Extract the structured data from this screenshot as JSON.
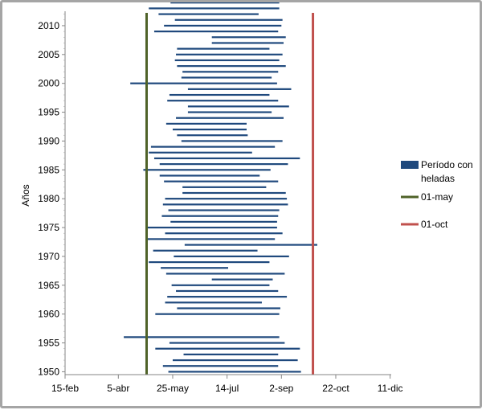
{
  "chart_data": {
    "type": "range-bar",
    "ylabel": "Años",
    "x_ticks": [
      {
        "label": "15-feb",
        "day": 46
      },
      {
        "label": "5-abr",
        "day": 95
      },
      {
        "label": "25-may",
        "day": 145
      },
      {
        "label": "14-jul",
        "day": 195
      },
      {
        "label": "2-sep",
        "day": 245
      },
      {
        "label": "22-oct",
        "day": 295
      },
      {
        "label": "11-dic",
        "day": 345
      }
    ],
    "xlim_day_of_year": [
      46,
      346
    ],
    "ylim_year": [
      2012.5,
      1949.5
    ],
    "y_ticks": [
      1950,
      1955,
      1960,
      1965,
      1970,
      1975,
      1980,
      1985,
      1990,
      1995,
      2000,
      2005,
      2010
    ],
    "ref_lines": [
      {
        "label": "01-may",
        "day": 121,
        "color": "#4f6228"
      },
      {
        "label": "01-oct",
        "day": 274,
        "color": "#c0504d"
      }
    ],
    "legend": {
      "placement": "right",
      "series_label": "Período con heladas"
    },
    "series_color": "#1f497d",
    "series": [
      {
        "name": "Período con heladas",
        "points": [
          {
            "year": 1950,
            "start": "May-21",
            "end": "Sep-20"
          },
          {
            "year": 1951,
            "start": "May-16",
            "end": "Aug-30"
          },
          {
            "year": 1952,
            "start": "May-25",
            "end": "Sep-17"
          },
          {
            "year": 1953,
            "start": "Jun-04",
            "end": "Aug-30"
          },
          {
            "year": 1954,
            "start": "May-09",
            "end": "Sep-19"
          },
          {
            "year": 1955,
            "start": "May-22",
            "end": "Sep-05"
          },
          {
            "year": 1956,
            "start": "Apr-10",
            "end": "Aug-31"
          },
          {
            "year": 1960,
            "start": "May-09",
            "end": "Aug-31"
          },
          {
            "year": 1961,
            "start": "May-29",
            "end": "Sep-01"
          },
          {
            "year": 1962,
            "start": "May-18",
            "end": "Aug-15"
          },
          {
            "year": 1963,
            "start": "May-20",
            "end": "Sep-07"
          },
          {
            "year": 1964,
            "start": "May-28",
            "end": "Aug-30"
          },
          {
            "year": 1965,
            "start": "May-24",
            "end": "Aug-22"
          },
          {
            "year": 1966,
            "start": "Jun-30",
            "end": "Aug-25"
          },
          {
            "year": 1967,
            "start": "May-19",
            "end": "Sep-05"
          },
          {
            "year": 1968,
            "start": "May-14",
            "end": "Jul-15"
          },
          {
            "year": 1969,
            "start": "May-03",
            "end": "Aug-22"
          },
          {
            "year": 1970,
            "start": "May-26",
            "end": "Sep-09"
          },
          {
            "year": 1971,
            "start": "May-07",
            "end": "Aug-11"
          },
          {
            "year": 1972,
            "start": "Jun-05",
            "end": "Oct-05"
          },
          {
            "year": 1973,
            "start": "May-01",
            "end": "Aug-27"
          },
          {
            "year": 1974,
            "start": "May-18",
            "end": "Sep-03"
          },
          {
            "year": 1975,
            "start": "May-01",
            "end": "Aug-29"
          },
          {
            "year": 1976,
            "start": "May-23",
            "end": "Aug-29"
          },
          {
            "year": 1977,
            "start": "May-15",
            "end": "Aug-30"
          },
          {
            "year": 1978,
            "start": "May-21",
            "end": "Aug-31"
          },
          {
            "year": 1979,
            "start": "May-16",
            "end": "Sep-08"
          },
          {
            "year": 1980,
            "start": "May-18",
            "end": "Sep-07"
          },
          {
            "year": 1981,
            "start": "Jun-03",
            "end": "Sep-06"
          },
          {
            "year": 1982,
            "start": "Jun-03",
            "end": "Aug-19"
          },
          {
            "year": 1983,
            "start": "May-17",
            "end": "Aug-30"
          },
          {
            "year": 1984,
            "start": "May-13",
            "end": "Aug-13"
          },
          {
            "year": 1985,
            "start": "Apr-28",
            "end": "Aug-23"
          },
          {
            "year": 1986,
            "start": "May-13",
            "end": "Sep-08"
          },
          {
            "year": 1987,
            "start": "May-08",
            "end": "Sep-19"
          },
          {
            "year": 1988,
            "start": "May-03",
            "end": "Aug-06"
          },
          {
            "year": 1989,
            "start": "May-05",
            "end": "Aug-27"
          },
          {
            "year": 1990,
            "start": "Jun-02",
            "end": "Sep-03"
          },
          {
            "year": 1991,
            "start": "May-29",
            "end": "Aug-02"
          },
          {
            "year": 1992,
            "start": "May-25",
            "end": "Aug-01"
          },
          {
            "year": 1993,
            "start": "May-19",
            "end": "Aug-01"
          },
          {
            "year": 1994,
            "start": "May-28",
            "end": "Sep-04"
          },
          {
            "year": 1995,
            "start": "Jun-08",
            "end": "Aug-24"
          },
          {
            "year": 1996,
            "start": "Jun-08",
            "end": "Sep-09"
          },
          {
            "year": 1997,
            "start": "May-20",
            "end": "Aug-30"
          },
          {
            "year": 1998,
            "start": "May-22",
            "end": "Aug-22"
          },
          {
            "year": 1999,
            "start": "Jun-08",
            "end": "Sep-11"
          },
          {
            "year": 2000,
            "start": "Apr-16",
            "end": "Aug-29"
          },
          {
            "year": 2001,
            "start": "Jun-02",
            "end": "Aug-24"
          },
          {
            "year": 2002,
            "start": "Jun-03",
            "end": "Aug-30"
          },
          {
            "year": 2003,
            "start": "May-29",
            "end": "Sep-06"
          },
          {
            "year": 2004,
            "start": "May-27",
            "end": "Aug-31"
          },
          {
            "year": 2005,
            "start": "May-28",
            "end": "Sep-03"
          },
          {
            "year": 2006,
            "start": "May-29",
            "end": "Aug-22"
          },
          {
            "year": 2007,
            "start": "Jun-30",
            "end": "Sep-04"
          },
          {
            "year": 2008,
            "start": "Jun-30",
            "end": "Sep-06"
          },
          {
            "year": 2009,
            "start": "May-08",
            "end": "Aug-30"
          },
          {
            "year": 2010,
            "start": "May-17",
            "end": "Sep-02"
          },
          {
            "year": 2011,
            "start": "May-27",
            "end": "Sep-03"
          },
          {
            "year": 2012,
            "start": "May-12",
            "end": "Aug-12"
          },
          {
            "year": 2013,
            "start": "May-03",
            "end": "Aug-31"
          },
          {
            "year": 2014,
            "start": "May-23",
            "end": "Aug-31"
          }
        ]
      }
    ]
  }
}
